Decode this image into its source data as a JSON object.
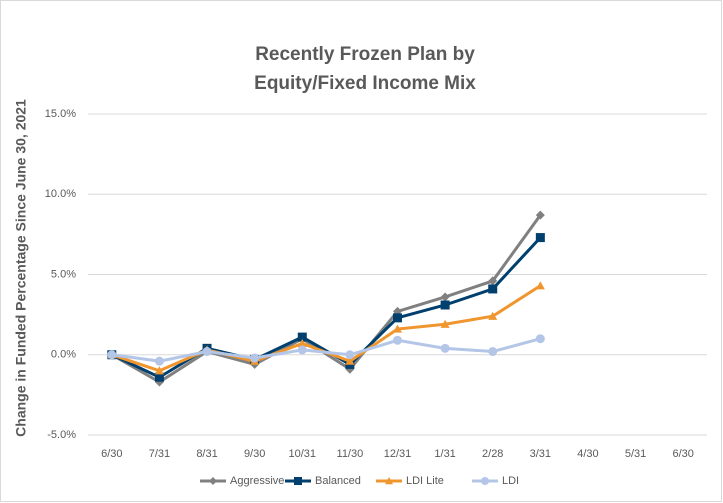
{
  "chart_data": {
    "type": "line",
    "title": [
      "Recently Frozen Plan by",
      "Equity/Fixed Income Mix"
    ],
    "y_label": "Change in Funded Percentage Since June 30, 2021",
    "categories": [
      "6/30",
      "7/31",
      "8/31",
      "9/30",
      "10/31",
      "11/30",
      "12/31",
      "1/31",
      "2/28",
      "3/31",
      "4/30",
      "5/31",
      "6/30"
    ],
    "series": [
      {
        "name": "Aggressive",
        "color": "#808080",
        "marker": "diamond",
        "values": [
          0,
          -1.7,
          0.2,
          -0.6,
          1.0,
          -0.9,
          2.7,
          3.6,
          4.6,
          8.7,
          null,
          null,
          null
        ]
      },
      {
        "name": "Balanced",
        "color": "#003f6e",
        "marker": "square",
        "values": [
          0,
          -1.4,
          0.4,
          -0.3,
          1.1,
          -0.6,
          2.3,
          3.1,
          4.1,
          7.3,
          null,
          null,
          null
        ]
      },
      {
        "name": "LDI Lite",
        "color": "#f0962e",
        "marker": "triangle",
        "values": [
          0,
          -1.0,
          0.3,
          -0.4,
          0.7,
          -0.4,
          1.6,
          1.9,
          2.4,
          4.3,
          null,
          null,
          null
        ]
      },
      {
        "name": "LDI",
        "color": "#b4c6e7",
        "marker": "circle",
        "values": [
          0,
          -0.4,
          0.2,
          -0.2,
          0.3,
          0.0,
          0.9,
          0.4,
          0.2,
          1.0,
          null,
          null,
          null
        ]
      }
    ],
    "ylim": [
      -5,
      15
    ],
    "yticks": [
      {
        "value": -5,
        "label": "-5.0%"
      },
      {
        "value": 0,
        "label": "0.0%"
      },
      {
        "value": 5,
        "label": "5.0%"
      },
      {
        "value": 10,
        "label": "10.0%"
      },
      {
        "value": 15,
        "label": "15.0%"
      }
    ],
    "grid": true,
    "legend": "bottom"
  }
}
